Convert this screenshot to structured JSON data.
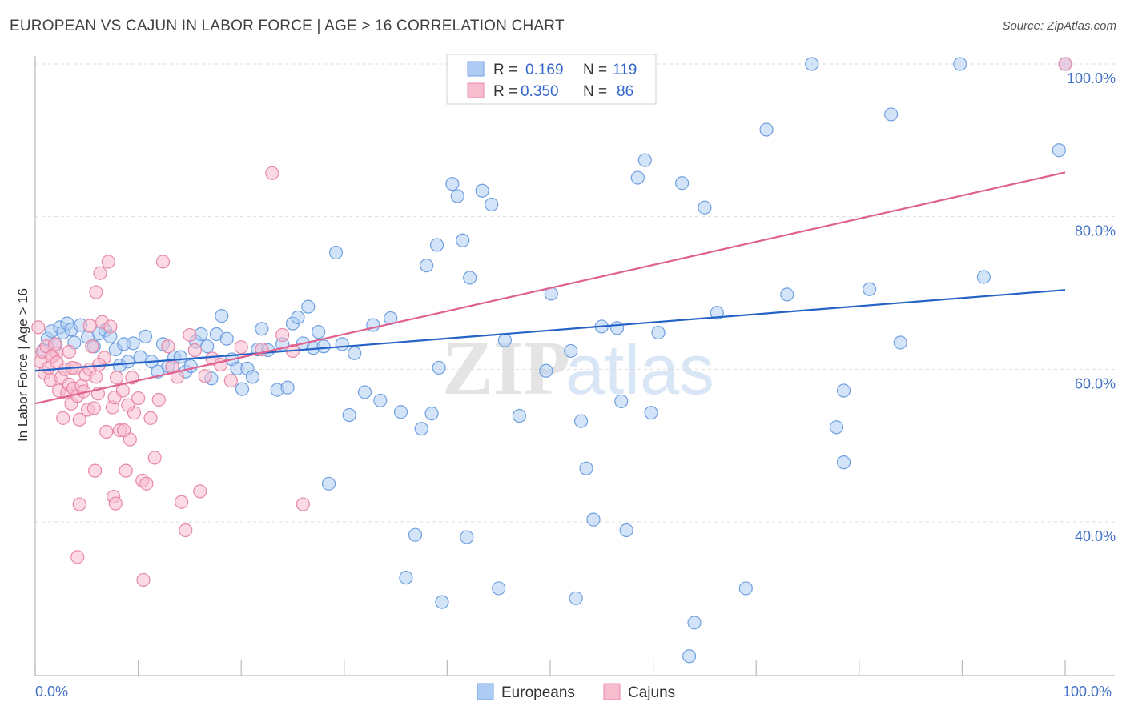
{
  "title": "EUROPEAN VS CAJUN IN LABOR FORCE | AGE > 16 CORRELATION CHART",
  "source": "Source: ZipAtlas.com",
  "watermark": {
    "zip": "ZIP",
    "atlas": "atlas"
  },
  "chart_data": {
    "type": "scatter",
    "ylabel": "In Labor Force | Age > 16",
    "xlim": [
      0,
      100
    ],
    "ylim": [
      20,
      100
    ],
    "x_tick_labels": [
      "0.0%",
      "100.0%"
    ],
    "y_ticks": [
      {
        "value": 40,
        "label": "40.0%"
      },
      {
        "value": 60,
        "label": "60.0%"
      },
      {
        "value": 80,
        "label": "80.0%"
      },
      {
        "value": 100,
        "label": "100.0%"
      }
    ],
    "grid": true,
    "legend_position": "top-center",
    "bottom_legend": [
      "Europeans",
      "Cajuns"
    ],
    "series": [
      {
        "name": "Europeans",
        "R_label": "R =",
        "R": "0.169",
        "N_label": "N =",
        "N": "119",
        "color": "#6fa0e0",
        "fill": "#aeccf3",
        "line_color": "#2563c7",
        "trend": {
          "x0": 0,
          "y0": 59.8,
          "x1": 100,
          "y1": 70.4
        },
        "points": [
          [
            0.8,
            62.5
          ],
          [
            1.2,
            64.0
          ],
          [
            1.6,
            65.0
          ],
          [
            2.0,
            63.2
          ],
          [
            2.4,
            65.5
          ],
          [
            2.7,
            64.8
          ],
          [
            3.1,
            66.0
          ],
          [
            3.5,
            65.2
          ],
          [
            3.8,
            63.5
          ],
          [
            4.4,
            65.8
          ],
          [
            5.1,
            64.2
          ],
          [
            5.7,
            63.0
          ],
          [
            6.2,
            64.7
          ],
          [
            6.8,
            65.1
          ],
          [
            7.3,
            64.3
          ],
          [
            7.8,
            62.6
          ],
          [
            8.2,
            60.5
          ],
          [
            8.6,
            63.3
          ],
          [
            9.0,
            61.0
          ],
          [
            9.5,
            63.4
          ],
          [
            10.2,
            61.6
          ],
          [
            10.7,
            64.3
          ],
          [
            11.3,
            61.0
          ],
          [
            11.9,
            59.7
          ],
          [
            12.4,
            63.3
          ],
          [
            12.9,
            60.4
          ],
          [
            13.5,
            61.6
          ],
          [
            14.1,
            61.6
          ],
          [
            14.6,
            59.7
          ],
          [
            15.1,
            60.4
          ],
          [
            15.6,
            63.6
          ],
          [
            16.1,
            64.6
          ],
          [
            16.7,
            63.0
          ],
          [
            17.1,
            58.8
          ],
          [
            17.6,
            64.6
          ],
          [
            18.1,
            67.0
          ],
          [
            18.6,
            64.0
          ],
          [
            19.1,
            61.3
          ],
          [
            19.6,
            60.1
          ],
          [
            20.1,
            57.4
          ],
          [
            20.6,
            60.1
          ],
          [
            21.1,
            59.0
          ],
          [
            21.6,
            62.6
          ],
          [
            22.0,
            65.3
          ],
          [
            22.6,
            62.5
          ],
          [
            23.5,
            57.3
          ],
          [
            24.0,
            63.3
          ],
          [
            24.5,
            57.6
          ],
          [
            25.0,
            66.0
          ],
          [
            25.5,
            66.8
          ],
          [
            26.0,
            63.4
          ],
          [
            26.5,
            68.2
          ],
          [
            27.0,
            62.8
          ],
          [
            27.5,
            64.9
          ],
          [
            28.0,
            63.0
          ],
          [
            28.5,
            45.0
          ],
          [
            29.2,
            75.3
          ],
          [
            29.8,
            63.3
          ],
          [
            30.5,
            54.0
          ],
          [
            31.0,
            62.1
          ],
          [
            32.0,
            57.0
          ],
          [
            32.8,
            65.8
          ],
          [
            33.5,
            55.9
          ],
          [
            34.5,
            66.7
          ],
          [
            35.5,
            54.4
          ],
          [
            36.0,
            32.7
          ],
          [
            36.9,
            38.3
          ],
          [
            37.5,
            52.2
          ],
          [
            38.0,
            73.6
          ],
          [
            38.5,
            54.2
          ],
          [
            39.0,
            76.3
          ],
          [
            39.2,
            60.2
          ],
          [
            39.5,
            29.5
          ],
          [
            40.5,
            84.3
          ],
          [
            41.0,
            82.7
          ],
          [
            41.5,
            76.9
          ],
          [
            41.9,
            38.0
          ],
          [
            42.2,
            72.0
          ],
          [
            43.4,
            83.4
          ],
          [
            44.3,
            81.6
          ],
          [
            45.0,
            31.3
          ],
          [
            45.6,
            63.8
          ],
          [
            47.0,
            53.9
          ],
          [
            47.5,
            100.2
          ],
          [
            49.6,
            59.8
          ],
          [
            50.1,
            69.9
          ],
          [
            50.6,
            100.0
          ],
          [
            52.0,
            62.4
          ],
          [
            52.5,
            30.0
          ],
          [
            53.0,
            53.2
          ],
          [
            53.5,
            47.0
          ],
          [
            54.2,
            40.3
          ],
          [
            55.0,
            65.6
          ],
          [
            56.5,
            65.4
          ],
          [
            56.9,
            55.8
          ],
          [
            57.4,
            38.9
          ],
          [
            58.5,
            85.1
          ],
          [
            59.2,
            87.4
          ],
          [
            59.8,
            54.3
          ],
          [
            60.5,
            64.8
          ],
          [
            62.8,
            84.4
          ],
          [
            63.5,
            22.4
          ],
          [
            64.0,
            26.8
          ],
          [
            65.0,
            81.2
          ],
          [
            66.2,
            67.4
          ],
          [
            69.0,
            31.3
          ],
          [
            71.0,
            91.4
          ],
          [
            73.0,
            69.8
          ],
          [
            75.4,
            100.0
          ],
          [
            77.8,
            52.4
          ],
          [
            78.5,
            47.8
          ],
          [
            78.5,
            57.2
          ],
          [
            81.0,
            70.5
          ],
          [
            83.1,
            93.4
          ],
          [
            84.0,
            63.5
          ],
          [
            89.8,
            100.0
          ],
          [
            92.1,
            72.1
          ],
          [
            99.4,
            88.7
          ],
          [
            100.0,
            100.0
          ]
        ]
      },
      {
        "name": "Cajuns",
        "R_label": "R =",
        "R": "0.350",
        "N_label": "N =",
        "N": "86",
        "color": "#e888a8",
        "fill": "#f7bccd",
        "line_color": "#e0608f",
        "trend": {
          "x0": 0,
          "y0": 55.5,
          "x1": 100,
          "y1": 85.8
        },
        "points": [
          [
            0.3,
            65.5
          ],
          [
            0.5,
            61.0
          ],
          [
            0.7,
            62.3
          ],
          [
            0.9,
            59.5
          ],
          [
            1.1,
            63.0
          ],
          [
            1.3,
            60.2
          ],
          [
            1.5,
            58.6
          ],
          [
            1.7,
            61.8
          ],
          [
            1.9,
            63.3
          ],
          [
            2.1,
            62.1
          ],
          [
            2.3,
            57.2
          ],
          [
            2.5,
            58.9
          ],
          [
            2.7,
            53.6
          ],
          [
            2.9,
            60.0
          ],
          [
            3.1,
            56.9
          ],
          [
            3.3,
            58.0
          ],
          [
            3.5,
            55.5
          ],
          [
            3.7,
            57.5
          ],
          [
            3.9,
            60.1
          ],
          [
            4.1,
            56.5
          ],
          [
            4.3,
            53.4
          ],
          [
            4.5,
            57.8
          ],
          [
            4.7,
            57.1
          ],
          [
            4.9,
            59.3
          ],
          [
            5.1,
            54.7
          ],
          [
            5.3,
            60.0
          ],
          [
            5.5,
            63.0
          ],
          [
            5.7,
            54.9
          ],
          [
            5.9,
            59.0
          ],
          [
            6.1,
            56.8
          ],
          [
            6.3,
            72.6
          ],
          [
            6.5,
            66.2
          ],
          [
            6.7,
            61.5
          ],
          [
            6.9,
            51.8
          ],
          [
            7.1,
            74.1
          ],
          [
            7.3,
            65.6
          ],
          [
            7.5,
            55.0
          ],
          [
            7.7,
            56.3
          ],
          [
            7.9,
            58.9
          ],
          [
            8.2,
            52.0
          ],
          [
            8.5,
            57.2
          ],
          [
            8.8,
            46.7
          ],
          [
            9.2,
            50.8
          ],
          [
            9.6,
            54.3
          ],
          [
            10.0,
            56.2
          ],
          [
            10.4,
            45.4
          ],
          [
            10.8,
            45.0
          ],
          [
            11.2,
            53.6
          ],
          [
            11.6,
            48.4
          ],
          [
            12.0,
            56.0
          ],
          [
            12.4,
            74.1
          ],
          [
            12.9,
            63.0
          ],
          [
            13.3,
            60.3
          ],
          [
            13.8,
            59.0
          ],
          [
            14.2,
            42.6
          ],
          [
            14.6,
            38.9
          ],
          [
            15.0,
            64.5
          ],
          [
            15.5,
            62.5
          ],
          [
            16.0,
            44.0
          ],
          [
            16.5,
            59.1
          ],
          [
            17.2,
            61.4
          ],
          [
            18.0,
            60.6
          ],
          [
            19.0,
            58.5
          ],
          [
            20.0,
            62.9
          ],
          [
            22.0,
            62.6
          ],
          [
            23.0,
            85.7
          ],
          [
            24.0,
            64.5
          ],
          [
            25.0,
            62.4
          ],
          [
            26.0,
            42.3
          ],
          [
            4.3,
            42.3
          ],
          [
            5.8,
            46.7
          ],
          [
            7.6,
            43.3
          ],
          [
            7.8,
            42.4
          ],
          [
            8.6,
            52.0
          ],
          [
            9.0,
            55.3
          ],
          [
            10.5,
            32.4
          ],
          [
            4.1,
            35.4
          ],
          [
            5.3,
            65.7
          ],
          [
            6.2,
            60.6
          ],
          [
            3.6,
            60.2
          ],
          [
            1.6,
            61.6
          ],
          [
            2.1,
            60.9
          ],
          [
            3.3,
            62.3
          ],
          [
            5.9,
            70.1
          ],
          [
            9.4,
            58.9
          ],
          [
            100.0,
            100.0
          ]
        ]
      }
    ]
  }
}
